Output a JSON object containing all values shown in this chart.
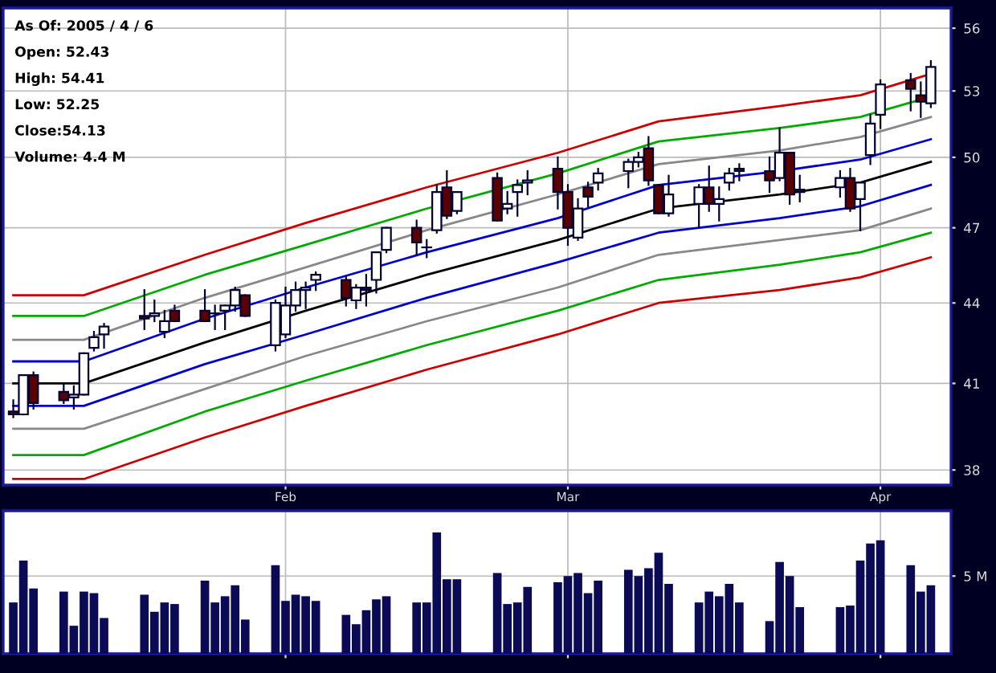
{
  "chart_data": [
    {
      "type": "candlestick",
      "log": true,
      "grid": true,
      "annotations": [
        "As Of: 2005 / 4 / 6",
        "Open: 52.43",
        "High: 54.41",
        "Low: 52.25",
        "Close:54.13",
        "Volume: 4.4 M"
      ],
      "x": [
        "2005-01-05",
        "2005-01-06",
        "2005-01-07",
        "2005-01-10",
        "2005-01-11",
        "2005-01-12",
        "2005-01-13",
        "2005-01-14",
        "2005-01-18",
        "2005-01-19",
        "2005-01-20",
        "2005-01-21",
        "2005-01-24",
        "2005-01-25",
        "2005-01-26",
        "2005-01-27",
        "2005-01-28",
        "2005-01-31",
        "2005-02-01",
        "2005-02-02",
        "2005-02-03",
        "2005-02-04",
        "2005-02-07",
        "2005-02-08",
        "2005-02-09",
        "2005-02-10",
        "2005-02-11",
        "2005-02-14",
        "2005-02-15",
        "2005-02-16",
        "2005-02-17",
        "2005-02-18",
        "2005-02-22",
        "2005-02-23",
        "2005-02-24",
        "2005-02-25",
        "2005-02-28",
        "2005-03-01",
        "2005-03-02",
        "2005-03-03",
        "2005-03-04",
        "2005-03-07",
        "2005-03-08",
        "2005-03-09",
        "2005-03-10",
        "2005-03-11",
        "2005-03-14",
        "2005-03-15",
        "2005-03-16",
        "2005-03-17",
        "2005-03-18",
        "2005-03-21",
        "2005-03-22",
        "2005-03-23",
        "2005-03-24",
        "2005-03-28",
        "2005-03-29",
        "2005-03-30",
        "2005-03-31",
        "2005-04-01",
        "2005-04-04",
        "2005-04-05",
        "2005-04-06"
      ],
      "ohlc": [
        [
          40.0,
          40.4,
          39.8,
          39.9
        ],
        [
          39.9,
          41.3,
          39.9,
          41.3
        ],
        [
          41.3,
          41.4,
          40.1,
          40.3
        ],
        [
          40.7,
          41.0,
          40.3,
          40.4
        ],
        [
          40.5,
          40.9,
          40.1,
          40.6
        ],
        [
          40.6,
          42.1,
          40.6,
          42.1
        ],
        [
          42.3,
          42.9,
          42.2,
          42.7
        ],
        [
          42.8,
          43.2,
          42.3,
          43.1
        ],
        [
          43.5,
          44.5,
          43.0,
          43.4
        ],
        [
          43.5,
          44.1,
          43.3,
          43.6
        ],
        [
          42.9,
          43.7,
          42.7,
          43.3
        ],
        [
          43.7,
          43.9,
          43.3,
          43.3
        ],
        [
          43.7,
          44.5,
          43.3,
          43.3
        ],
        [
          43.6,
          43.9,
          43.0,
          43.6
        ],
        [
          43.7,
          43.9,
          43.0,
          43.9
        ],
        [
          43.9,
          44.6,
          43.7,
          44.5
        ],
        [
          44.3,
          44.3,
          43.5,
          43.5
        ],
        [
          42.4,
          44.1,
          42.2,
          44.0
        ],
        [
          42.8,
          44.6,
          42.7,
          43.9
        ],
        [
          43.9,
          44.8,
          43.7,
          44.5
        ],
        [
          44.5,
          44.8,
          43.8,
          44.6
        ],
        [
          44.9,
          45.2,
          44.5,
          45.1
        ],
        [
          44.9,
          45.0,
          43.9,
          44.2
        ],
        [
          44.1,
          44.7,
          43.8,
          44.6
        ],
        [
          44.6,
          45.1,
          43.9,
          44.5
        ],
        [
          44.9,
          46.0,
          44.4,
          46.0
        ],
        [
          46.1,
          47.0,
          46.0,
          47.0
        ],
        [
          47.0,
          47.3,
          45.9,
          46.4
        ],
        [
          46.2,
          46.5,
          45.8,
          46.2
        ],
        [
          46.9,
          48.8,
          46.8,
          48.5
        ],
        [
          48.7,
          49.4,
          47.4,
          47.5
        ],
        [
          47.7,
          48.5,
          47.6,
          48.5
        ],
        [
          49.1,
          49.3,
          47.3,
          47.3
        ],
        [
          47.8,
          48.5,
          47.6,
          48.0
        ],
        [
          48.5,
          49.0,
          47.5,
          48.8
        ],
        [
          48.9,
          49.4,
          48.4,
          49.0
        ],
        [
          49.5,
          50.0,
          47.8,
          48.5
        ],
        [
          48.5,
          48.8,
          46.3,
          47.0
        ],
        [
          46.6,
          48.2,
          46.5,
          47.8
        ],
        [
          48.7,
          48.9,
          47.9,
          48.3
        ],
        [
          48.9,
          49.5,
          48.6,
          49.3
        ],
        [
          49.4,
          49.9,
          48.7,
          49.8
        ],
        [
          49.8,
          50.2,
          49.6,
          50.0
        ],
        [
          50.4,
          50.9,
          48.8,
          49.0
        ],
        [
          48.8,
          48.8,
          47.6,
          47.6
        ],
        [
          47.6,
          49.2,
          47.5,
          48.4
        ],
        [
          48.0,
          48.8,
          47.0,
          48.7
        ],
        [
          48.7,
          49.6,
          47.7,
          48.0
        ],
        [
          48.0,
          48.7,
          47.3,
          48.2
        ],
        [
          48.9,
          49.5,
          48.6,
          49.3
        ],
        [
          49.5,
          49.7,
          49.0,
          49.4
        ],
        [
          49.4,
          50.0,
          48.5,
          49.0
        ],
        [
          49.1,
          51.3,
          49.0,
          50.2
        ],
        [
          50.2,
          50.2,
          48.0,
          48.4
        ],
        [
          48.6,
          49.2,
          48.1,
          48.5
        ],
        [
          48.7,
          49.4,
          48.3,
          49.1
        ],
        [
          49.1,
          49.5,
          47.7,
          47.8
        ],
        [
          48.2,
          48.9,
          46.9,
          48.9
        ],
        [
          50.1,
          51.9,
          49.7,
          51.5
        ],
        [
          51.9,
          53.5,
          51.3,
          53.3
        ],
        [
          53.5,
          53.8,
          52.1,
          53.1
        ],
        [
          52.8,
          53.4,
          51.8,
          52.5
        ],
        [
          52.43,
          54.41,
          52.25,
          54.13
        ]
      ],
      "series": [
        {
          "type": "line",
          "color": "#cc0000",
          "x": [
            "2005-01-05",
            "2005-01-12",
            "2005-01-24",
            "2005-02-03",
            "2005-02-15",
            "2005-02-28",
            "2005-03-10",
            "2005-03-22",
            "2005-03-30",
            "2005-04-06"
          ],
          "values": [
            44.3,
            44.3,
            45.9,
            47.2,
            48.7,
            50.2,
            51.6,
            52.3,
            52.8,
            53.8
          ]
        },
        {
          "type": "line",
          "color": "#00aa00",
          "x": [
            "2005-01-05",
            "2005-01-12",
            "2005-01-24",
            "2005-02-03",
            "2005-02-15",
            "2005-02-28",
            "2005-03-10",
            "2005-03-22",
            "2005-03-30",
            "2005-04-05"
          ],
          "values": [
            43.5,
            43.5,
            45.1,
            46.3,
            47.8,
            49.3,
            50.7,
            51.3,
            51.8,
            52.6
          ]
        },
        {
          "type": "line",
          "color": "#888888",
          "x": [
            "2005-01-05",
            "2005-01-12",
            "2005-01-24",
            "2005-02-03",
            "2005-02-15",
            "2005-02-28",
            "2005-03-10",
            "2005-03-22",
            "2005-03-30",
            "2005-04-06"
          ],
          "values": [
            42.6,
            42.6,
            44.2,
            45.4,
            46.9,
            48.4,
            49.7,
            50.3,
            50.9,
            51.8
          ]
        },
        {
          "type": "line",
          "color": "#0000cc",
          "x": [
            "2005-01-05",
            "2005-01-12",
            "2005-01-24",
            "2005-02-03",
            "2005-02-15",
            "2005-02-28",
            "2005-03-10",
            "2005-03-22",
            "2005-03-30",
            "2005-04-06"
          ],
          "values": [
            41.8,
            41.8,
            43.4,
            44.6,
            46.0,
            47.4,
            48.8,
            49.4,
            49.9,
            50.8
          ]
        },
        {
          "type": "line",
          "color": "#000000",
          "x": [
            "2005-01-05",
            "2005-01-12",
            "2005-01-24",
            "2005-02-03",
            "2005-02-15",
            "2005-02-28",
            "2005-03-10",
            "2005-03-22",
            "2005-03-30",
            "2005-04-06"
          ],
          "values": [
            41.0,
            41.0,
            42.5,
            43.7,
            45.1,
            46.5,
            47.8,
            48.4,
            48.9,
            49.8
          ]
        },
        {
          "type": "line",
          "color": "#0000cc",
          "x": [
            "2005-01-05",
            "2005-01-12",
            "2005-01-24",
            "2005-02-03",
            "2005-02-15",
            "2005-02-28",
            "2005-03-10",
            "2005-03-22",
            "2005-03-30",
            "2005-04-06"
          ],
          "values": [
            40.2,
            40.2,
            41.7,
            42.8,
            44.2,
            45.6,
            46.8,
            47.4,
            47.9,
            48.8
          ]
        },
        {
          "type": "line",
          "color": "#888888",
          "x": [
            "2005-01-05",
            "2005-01-12",
            "2005-01-24",
            "2005-02-03",
            "2005-02-15",
            "2005-02-28",
            "2005-03-10",
            "2005-03-22",
            "2005-03-30",
            "2005-04-06"
          ],
          "values": [
            39.4,
            39.4,
            40.8,
            42.0,
            43.3,
            44.6,
            45.9,
            46.5,
            46.9,
            47.8
          ]
        },
        {
          "type": "line",
          "color": "#00aa00",
          "x": [
            "2005-01-05",
            "2005-01-12",
            "2005-01-24",
            "2005-02-03",
            "2005-02-15",
            "2005-02-28",
            "2005-03-10",
            "2005-03-22",
            "2005-03-30",
            "2005-04-06"
          ],
          "values": [
            38.5,
            38.5,
            40.0,
            41.1,
            42.4,
            43.7,
            44.9,
            45.5,
            46.0,
            46.8
          ]
        },
        {
          "type": "line",
          "color": "#cc0000",
          "x": [
            "2005-01-05",
            "2005-01-12",
            "2005-01-24",
            "2005-02-03",
            "2005-02-15",
            "2005-02-28",
            "2005-03-10",
            "2005-03-22",
            "2005-03-30",
            "2005-04-06"
          ],
          "values": [
            37.7,
            37.7,
            39.1,
            40.2,
            41.5,
            42.8,
            44.0,
            44.5,
            45.0,
            45.8
          ]
        }
      ],
      "xlim": [
        "2005-01-04",
        "2005-04-08"
      ],
      "xticks": [
        {
          "value": "2005-02-01",
          "label": "Feb"
        },
        {
          "value": "2005-03-01",
          "label": "Mar"
        },
        {
          "value": "2005-04-01",
          "label": "Apr"
        }
      ],
      "ylim": [
        37.5,
        57
      ],
      "yticks": [
        38,
        41,
        44,
        47,
        50,
        53,
        56
      ]
    },
    {
      "type": "bar",
      "grid": true,
      "tick_labels": "y",
      "color": "#0a0a55",
      "x": [
        "2005-01-05",
        "2005-01-06",
        "2005-01-07",
        "2005-01-10",
        "2005-01-11",
        "2005-01-12",
        "2005-01-13",
        "2005-01-14",
        "2005-01-18",
        "2005-01-19",
        "2005-01-20",
        "2005-01-21",
        "2005-01-24",
        "2005-01-25",
        "2005-01-26",
        "2005-01-27",
        "2005-01-28",
        "2005-01-31",
        "2005-02-01",
        "2005-02-02",
        "2005-02-03",
        "2005-02-04",
        "2005-02-07",
        "2005-02-08",
        "2005-02-09",
        "2005-02-10",
        "2005-02-11",
        "2005-02-14",
        "2005-02-15",
        "2005-02-16",
        "2005-02-17",
        "2005-02-18",
        "2005-02-22",
        "2005-02-23",
        "2005-02-24",
        "2005-02-25",
        "2005-02-28",
        "2005-03-01",
        "2005-03-02",
        "2005-03-03",
        "2005-03-04",
        "2005-03-07",
        "2005-03-08",
        "2005-03-09",
        "2005-03-10",
        "2005-03-11",
        "2005-03-14",
        "2005-03-15",
        "2005-03-16",
        "2005-03-17",
        "2005-03-18",
        "2005-03-21",
        "2005-03-22",
        "2005-03-23",
        "2005-03-24",
        "2005-03-28",
        "2005-03-29",
        "2005-03-30",
        "2005-03-31",
        "2005-04-01",
        "2005-04-04",
        "2005-04-05",
        "2005-04-06"
      ],
      "values": [
        3.3,
        6.0,
        4.2,
        4.0,
        1.8,
        4.0,
        3.9,
        2.3,
        3.8,
        2.7,
        3.3,
        3.2,
        4.7,
        3.3,
        3.7,
        4.4,
        2.2,
        5.7,
        3.4,
        3.8,
        3.7,
        3.4,
        2.5,
        1.9,
        2.8,
        3.5,
        3.7,
        3.3,
        3.3,
        7.8,
        4.8,
        4.8,
        5.2,
        3.2,
        3.3,
        4.3,
        4.6,
        5.0,
        5.2,
        3.9,
        4.7,
        5.4,
        5.0,
        5.5,
        6.5,
        4.5,
        3.3,
        4.0,
        3.7,
        4.5,
        3.3,
        2.1,
        5.9,
        5.0,
        3.0,
        3.0,
        3.1,
        6.0,
        7.1,
        7.3,
        5.7,
        4.0,
        4.4
      ],
      "xlim": [
        "2005-01-04",
        "2005-04-08"
      ],
      "xticks": [
        {
          "value": "2005-02-01",
          "label": null
        },
        {
          "value": "2005-03-01",
          "label": null
        },
        {
          "value": "2005-04-01",
          "label": null
        }
      ],
      "ylim": [
        0,
        9.2
      ],
      "yticks": [
        {
          "value": 5,
          "label": "5 M"
        }
      ]
    }
  ]
}
